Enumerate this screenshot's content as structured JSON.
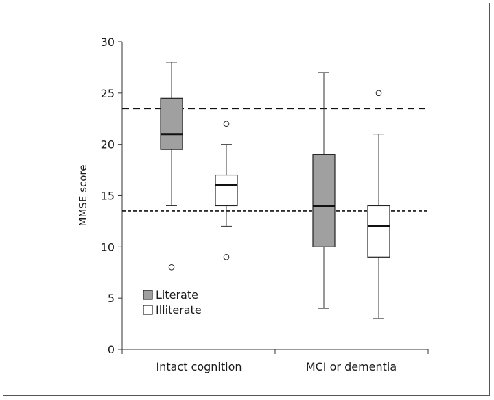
{
  "chart_data": {
    "type": "box",
    "title": "",
    "xlabel": "",
    "ylabel": "MMSE score",
    "ylim": [
      0,
      30
    ],
    "yticks": [
      0,
      5,
      10,
      15,
      20,
      25,
      30
    ],
    "categories": [
      "Intact cognition",
      "MCI or dementia"
    ],
    "legend_position": "bottom-left",
    "grid": false,
    "series": [
      {
        "name": "Literate",
        "color": "#a0a0a0",
        "boxes": [
          {
            "category": "Intact cognition",
            "whisker_low": 14,
            "q1": 19.5,
            "median": 21,
            "q3": 24.5,
            "whisker_high": 28,
            "outliers": [
              8
            ]
          },
          {
            "category": "MCI or dementia",
            "whisker_low": 4,
            "q1": 10,
            "median": 14,
            "q3": 19,
            "whisker_high": 27,
            "outliers": []
          }
        ]
      },
      {
        "name": "Illiterate",
        "color": "#ffffff",
        "boxes": [
          {
            "category": "Intact cognition",
            "whisker_low": 12,
            "q1": 14,
            "median": 16,
            "q3": 17,
            "whisker_high": 20,
            "outliers": [
              9,
              22
            ]
          },
          {
            "category": "MCI or dementia",
            "whisker_low": 3,
            "q1": 9,
            "median": 12,
            "q3": 14,
            "whisker_high": 21,
            "outliers": [
              25
            ]
          }
        ]
      }
    ],
    "reference_lines": [
      {
        "y": 23.5,
        "style": "dashed"
      },
      {
        "y": 13.5,
        "style": "dotted-dashed"
      }
    ]
  }
}
